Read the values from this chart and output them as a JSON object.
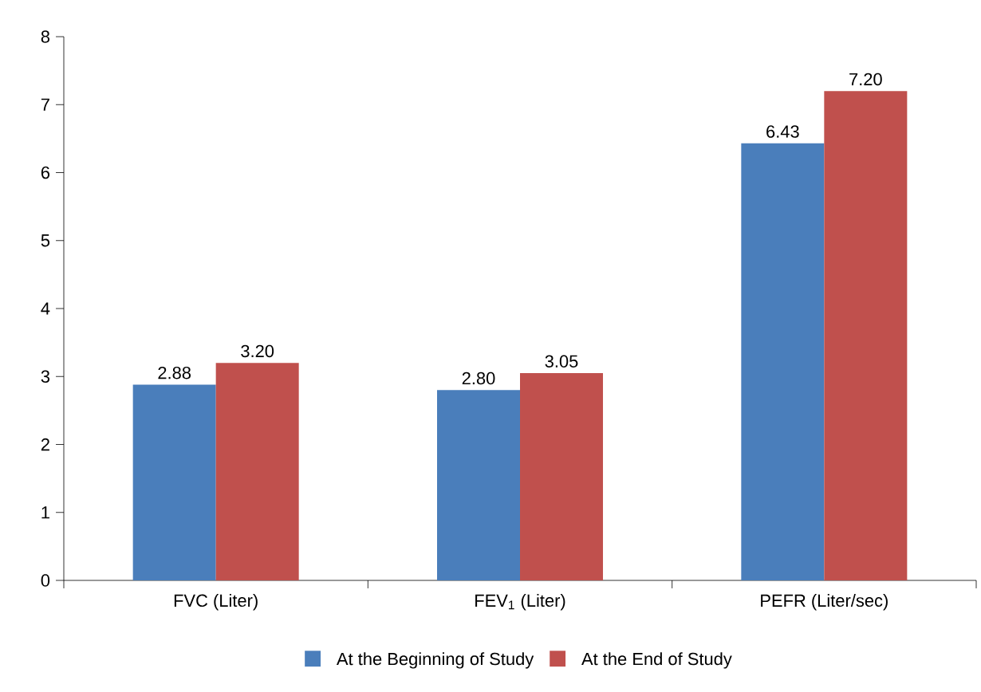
{
  "chart_data": {
    "type": "bar",
    "categories": [
      "FVC (Liter)",
      "FEV$_{1}$ (Liter)",
      "PEFR (Liter/sec)"
    ],
    "series": [
      {
        "name": "At the Beginning of Study",
        "color": "#4a7ebb",
        "values": [
          2.88,
          2.8,
          6.43
        ],
        "value_labels": [
          "2.88",
          "2.80",
          "6.43"
        ]
      },
      {
        "name": "At the End of Study",
        "color": "#c0504d",
        "values": [
          3.2,
          3.05,
          7.2
        ],
        "value_labels": [
          "3.20",
          "3.05",
          "7.20"
        ]
      }
    ],
    "ylim": [
      0,
      8
    ],
    "yticks": [
      0,
      1,
      2,
      3,
      4,
      5,
      6,
      7,
      8
    ],
    "grid": false,
    "legend": "bottom"
  }
}
